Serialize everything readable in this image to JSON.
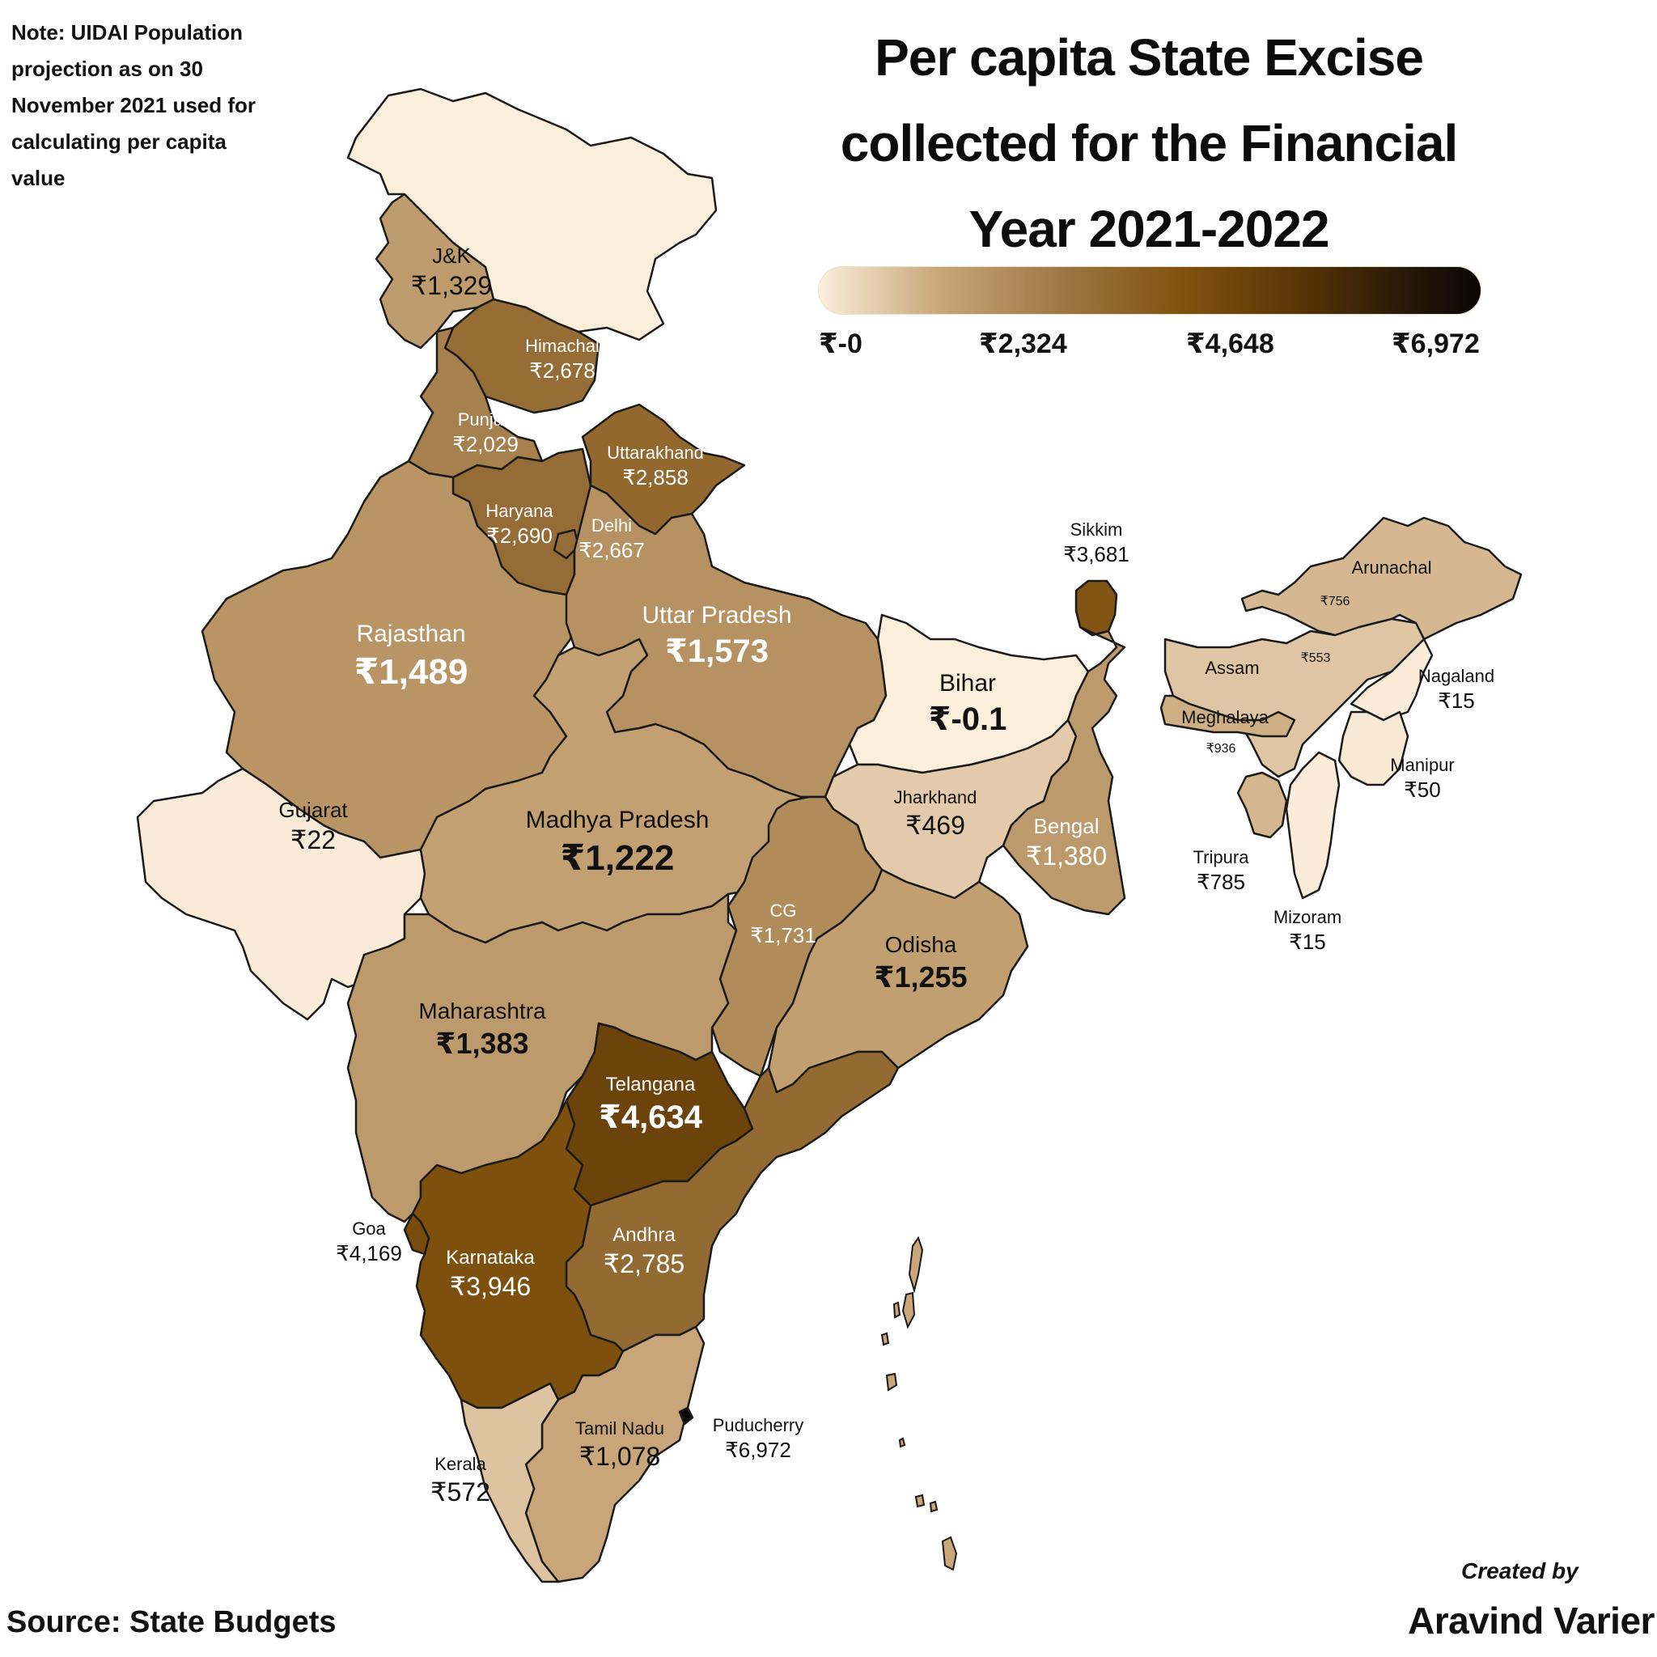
{
  "note": "Note: UIDAI Population projection as on 30 November 2021 used for calculating per capita value",
  "title": "Per capita State Excise collected for the Financial Year 2021-2022",
  "legend": {
    "ticks": [
      "₹-0",
      "₹2,324",
      "₹4,648",
      "₹6,972"
    ],
    "min": 0,
    "max": 6972,
    "colors": [
      "#fbeedb",
      "#c9a77a",
      "#9b7440",
      "#80520f",
      "#5a3607",
      "#0a0604"
    ]
  },
  "source": "Source: State Budgets",
  "credit": {
    "line1": "Created by",
    "line2": "Aravind Varier"
  },
  "states": [
    {
      "key": "ladakh",
      "name": "",
      "value": "",
      "amount": 0
    },
    {
      "key": "jk",
      "name": "J&K",
      "value": "₹1,329",
      "amount": 1329
    },
    {
      "key": "himachal",
      "name": "Himachal",
      "value": "₹2,678",
      "amount": 2678
    },
    {
      "key": "punjab",
      "name": "Punjab",
      "value": "₹2,029",
      "amount": 2029
    },
    {
      "key": "uttarakhand",
      "name": "Uttarakhand",
      "value": "₹2,858",
      "amount": 2858
    },
    {
      "key": "haryana",
      "name": "Haryana",
      "value": "₹2,690",
      "amount": 2690
    },
    {
      "key": "delhi",
      "name": "Delhi",
      "value": "₹2,667",
      "amount": 2667
    },
    {
      "key": "rajasthan",
      "name": "Rajasthan",
      "value": "₹1,489",
      "amount": 1489
    },
    {
      "key": "up",
      "name": "Uttar Pradesh",
      "value": "₹1,573",
      "amount": 1573
    },
    {
      "key": "gujarat",
      "name": "Gujarat",
      "value": "₹22",
      "amount": 22
    },
    {
      "key": "mp",
      "name": "Madhya Pradesh",
      "value": "₹1,222",
      "amount": 1222
    },
    {
      "key": "bihar",
      "name": "Bihar",
      "value": "₹-0.1",
      "amount": -0.1
    },
    {
      "key": "sikkim",
      "name": "Sikkim",
      "value": "₹3,681",
      "amount": 3681
    },
    {
      "key": "arunachal",
      "name": "Arunachal",
      "value": "₹756",
      "amount": 756
    },
    {
      "key": "assam",
      "name": "Assam",
      "value": "₹553",
      "amount": 553
    },
    {
      "key": "nagaland",
      "name": "Nagaland",
      "value": "₹15",
      "amount": 15
    },
    {
      "key": "meghalaya",
      "name": "Meghalaya",
      "value": "₹936",
      "amount": 936
    },
    {
      "key": "manipur",
      "name": "Manipur",
      "value": "₹50",
      "amount": 50
    },
    {
      "key": "tripura",
      "name": "Tripura",
      "value": "₹785",
      "amount": 785
    },
    {
      "key": "mizoram",
      "name": "Mizoram",
      "value": "₹15",
      "amount": 15
    },
    {
      "key": "jharkhand",
      "name": "Jharkhand",
      "value": "₹469",
      "amount": 469
    },
    {
      "key": "bengal",
      "name": "Bengal",
      "value": "₹1,380",
      "amount": 1380
    },
    {
      "key": "cg",
      "name": "CG",
      "value": "₹1,731",
      "amount": 1731
    },
    {
      "key": "odisha",
      "name": "Odisha",
      "value": "₹1,255",
      "amount": 1255
    },
    {
      "key": "maharashtra",
      "name": "Maharashtra",
      "value": "₹1,383",
      "amount": 1383
    },
    {
      "key": "telangana",
      "name": "Telangana",
      "value": "₹4,634",
      "amount": 4634
    },
    {
      "key": "goa",
      "name": "Goa",
      "value": "₹4,169",
      "amount": 4169
    },
    {
      "key": "karnataka",
      "name": "Karnataka",
      "value": "₹3,946",
      "amount": 3946
    },
    {
      "key": "andhra",
      "name": "Andhra",
      "value": "₹2,785",
      "amount": 2785
    },
    {
      "key": "tn",
      "name": "Tamil Nadu",
      "value": "₹1,078",
      "amount": 1078
    },
    {
      "key": "puducherry",
      "name": "Puducherry",
      "value": "₹6,972",
      "amount": 6972
    },
    {
      "key": "kerala",
      "name": "Kerala",
      "value": "₹572",
      "amount": 572
    }
  ]
}
